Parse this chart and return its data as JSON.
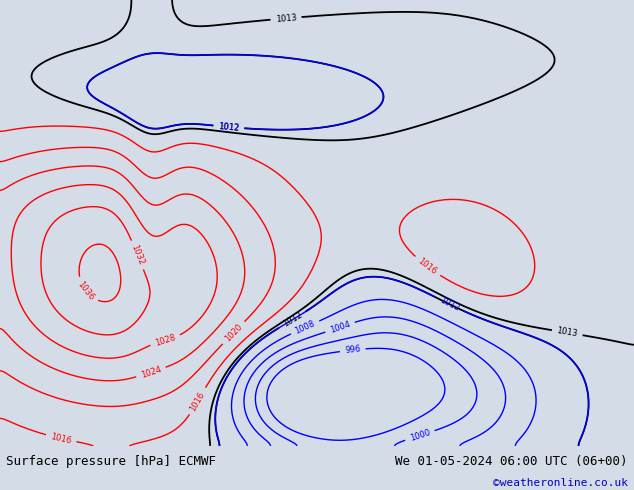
{
  "title_left": "Surface pressure [hPa] ECMWF",
  "title_right": "We 01-05-2024 06:00 UTC (06+00)",
  "copyright": "©weatheronline.co.uk",
  "bg_color": "#d4dce8",
  "land_color": "#aad890",
  "border_color": "#888888",
  "footer_bg": "#c8c8c8",
  "footer_text_color": "#000000",
  "copyright_color": "#0000cc",
  "fig_width": 6.34,
  "fig_height": 4.9,
  "lon_min": -110,
  "lon_max": 25,
  "lat_min": -65,
  "lat_max": 25,
  "contour_black_levels": [
    1012,
    1013
  ],
  "contour_red_levels": [
    1016,
    1020,
    1024,
    1028,
    1032,
    1036
  ],
  "contour_blue_levels": [
    996,
    1000,
    1004,
    1008,
    1012
  ],
  "contour_lw_black": 1.3,
  "contour_lw_red": 1.0,
  "contour_lw_blue": 1.0,
  "label_fontsize": 6
}
